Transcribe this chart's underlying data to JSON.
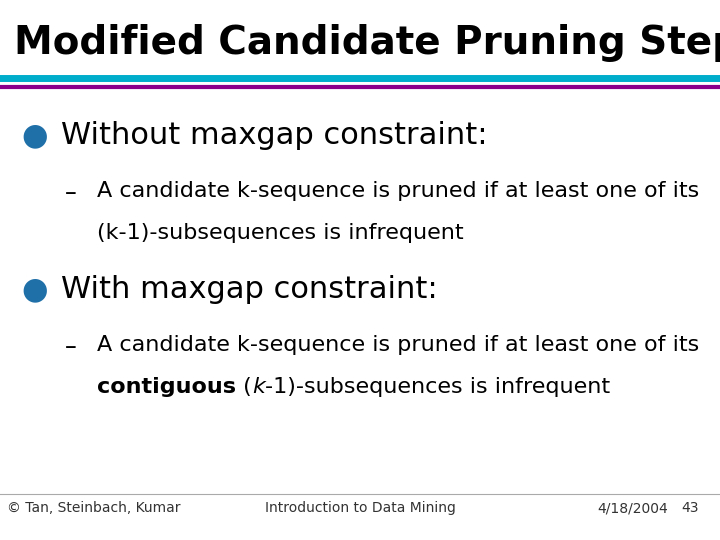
{
  "title": "Modified Candidate Pruning Step",
  "title_fontsize": 28,
  "title_color": "#000000",
  "bg_color": "#ffffff",
  "line1_color": "#00AECC",
  "line2_color": "#8B008B",
  "bullet_color": "#1F6FA8",
  "bullet1_text": "Without maxgap constraint:",
  "bullet1_fontsize": 22,
  "sub1_line1": "A candidate k-sequence is pruned if at least one of its",
  "sub1_line2": "(k-1)-subsequences is infrequent",
  "bullet2_text": "With maxgap constraint:",
  "bullet2_fontsize": 22,
  "sub2_line1": "A candidate k-sequence is pruned if at least one of its",
  "sub_fontsize": 16,
  "footer_left": "© Tan, Steinbach, Kumar",
  "footer_center": "Introduction to Data Mining",
  "footer_right_date": "4/18/2004",
  "footer_right_num": "43",
  "footer_fontsize": 10,
  "footer_line_color": "#aaaaaa"
}
